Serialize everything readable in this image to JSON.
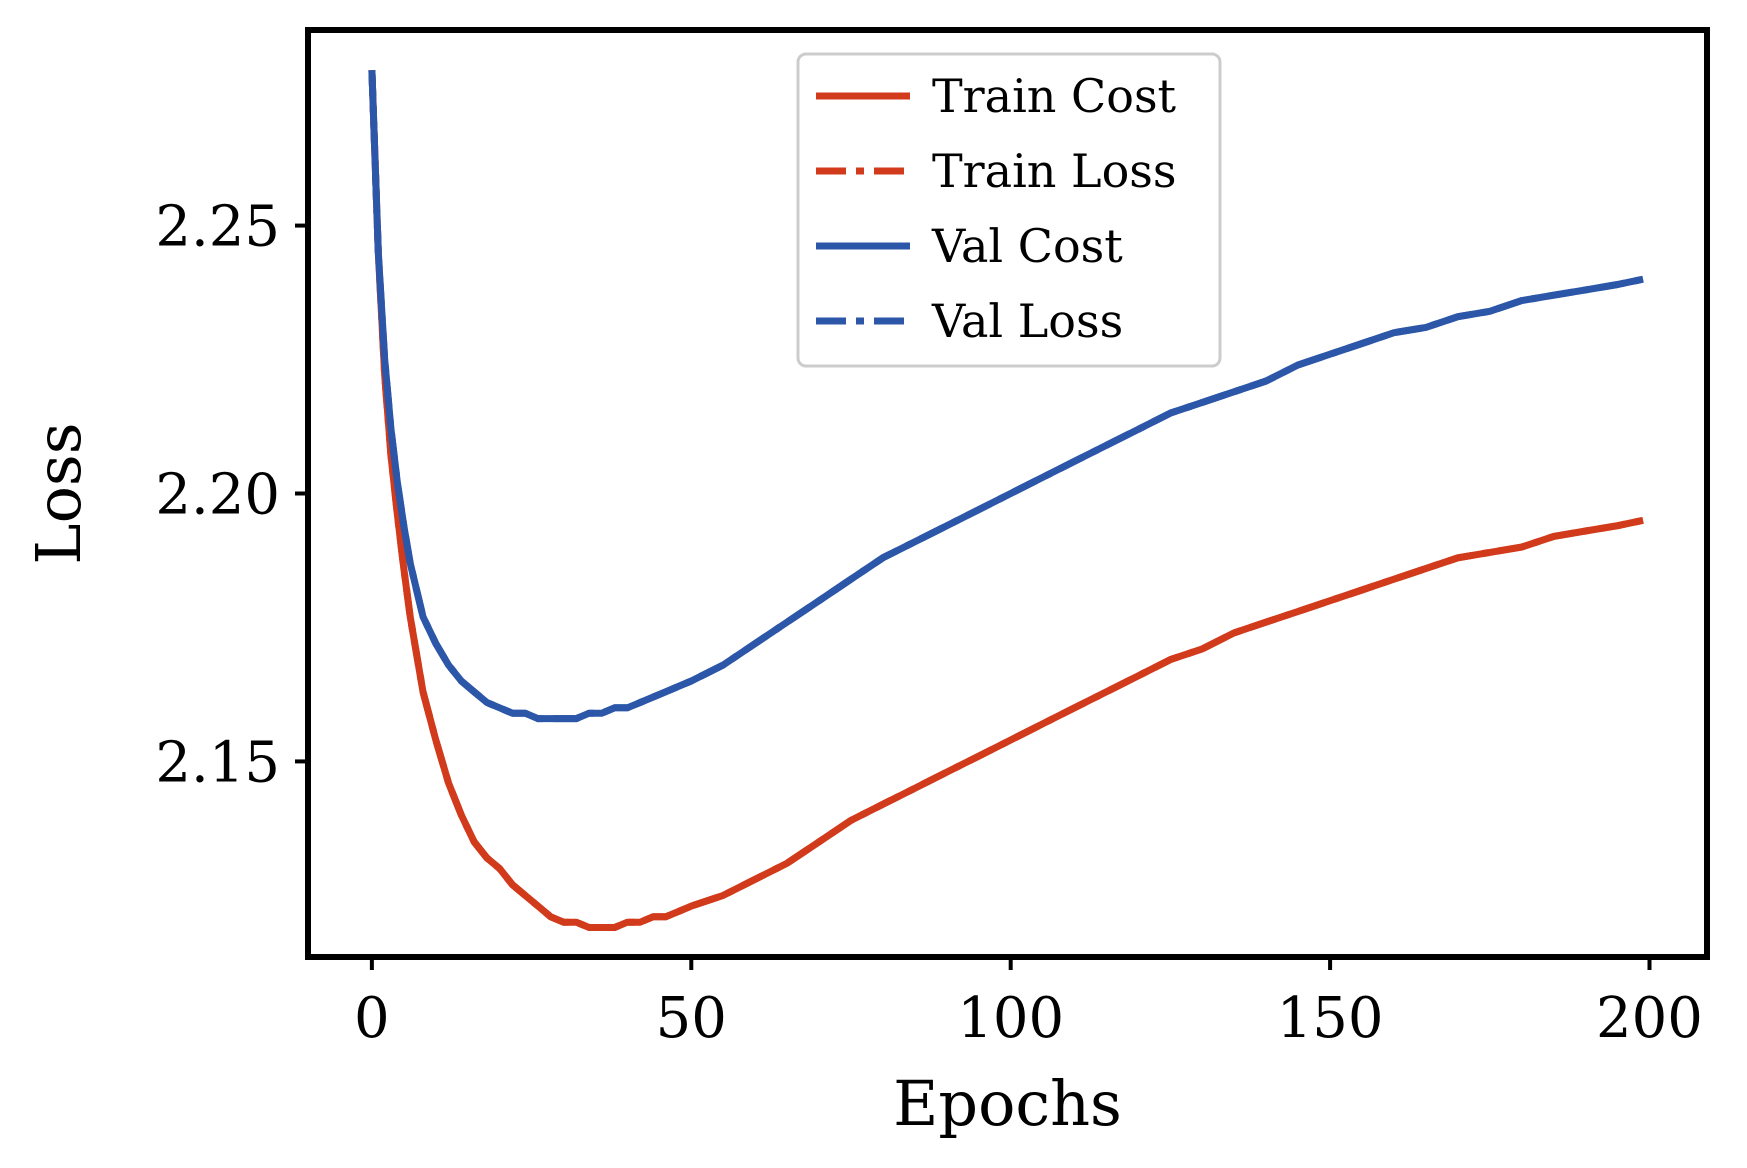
{
  "chart_data": {
    "type": "line",
    "xlabel": "Epochs",
    "ylabel": "Loss",
    "xlim": [
      -10,
      209
    ],
    "ylim": [
      2.1135,
      2.2865
    ],
    "xticks": [
      0,
      50,
      100,
      150,
      200
    ],
    "xtick_labels": [
      "0",
      "50",
      "100",
      "150",
      "200"
    ],
    "yticks": [
      2.15,
      2.2,
      2.25
    ],
    "ytick_labels": [
      "2.15",
      "2.20",
      "2.25"
    ],
    "grid": false,
    "legend_position": "top-center",
    "series": [
      {
        "name": "Train Cost",
        "color": "#d23a1c",
        "dash": "solid",
        "x": [
          0,
          1,
          2,
          3,
          4,
          5,
          6,
          7,
          8,
          10,
          12,
          14,
          16,
          18,
          20,
          22,
          24,
          26,
          28,
          30,
          32,
          34,
          36,
          38,
          40,
          42,
          44,
          46,
          48,
          50,
          55,
          60,
          65,
          70,
          75,
          80,
          85,
          90,
          95,
          100,
          105,
          110,
          115,
          120,
          125,
          130,
          135,
          140,
          145,
          150,
          155,
          160,
          165,
          170,
          175,
          180,
          185,
          190,
          195,
          199
        ],
        "values": [
          2.279,
          2.245,
          2.222,
          2.207,
          2.196,
          2.186,
          2.177,
          2.17,
          2.163,
          2.154,
          2.146,
          2.14,
          2.135,
          2.132,
          2.13,
          2.127,
          2.125,
          2.123,
          2.121,
          2.12,
          2.12,
          2.119,
          2.119,
          2.119,
          2.12,
          2.12,
          2.121,
          2.121,
          2.122,
          2.123,
          2.125,
          2.128,
          2.131,
          2.135,
          2.139,
          2.142,
          2.145,
          2.148,
          2.151,
          2.154,
          2.157,
          2.16,
          2.163,
          2.166,
          2.169,
          2.171,
          2.174,
          2.176,
          2.178,
          2.18,
          2.182,
          2.184,
          2.186,
          2.188,
          2.189,
          2.19,
          2.192,
          2.193,
          2.194,
          2.195
        ]
      },
      {
        "name": "Train Loss",
        "color": "#d23a1c",
        "dash": "dashdot",
        "x": [
          0,
          1,
          2,
          3,
          4,
          5,
          6,
          7,
          8,
          10,
          12,
          14,
          16,
          18,
          20,
          22,
          24,
          26,
          28,
          30,
          32,
          34,
          36,
          38,
          40,
          42,
          44,
          46,
          48,
          50,
          55,
          60,
          65,
          70,
          75,
          80,
          85,
          90,
          95,
          100,
          105,
          110,
          115,
          120,
          125,
          130,
          135,
          140,
          145,
          150,
          155,
          160,
          165,
          170,
          175,
          180,
          185,
          190,
          195,
          199
        ],
        "values": [
          2.279,
          2.245,
          2.222,
          2.207,
          2.196,
          2.186,
          2.177,
          2.17,
          2.163,
          2.154,
          2.146,
          2.14,
          2.135,
          2.132,
          2.13,
          2.127,
          2.125,
          2.123,
          2.121,
          2.12,
          2.12,
          2.119,
          2.119,
          2.119,
          2.12,
          2.12,
          2.121,
          2.121,
          2.122,
          2.123,
          2.125,
          2.128,
          2.131,
          2.135,
          2.139,
          2.142,
          2.145,
          2.148,
          2.151,
          2.154,
          2.157,
          2.16,
          2.163,
          2.166,
          2.169,
          2.171,
          2.174,
          2.176,
          2.178,
          2.18,
          2.182,
          2.184,
          2.186,
          2.188,
          2.189,
          2.19,
          2.192,
          2.193,
          2.194,
          2.195
        ]
      },
      {
        "name": "Val Cost",
        "color": "#2c56a8",
        "dash": "solid",
        "x": [
          0,
          1,
          2,
          3,
          4,
          5,
          6,
          7,
          8,
          10,
          12,
          14,
          16,
          18,
          20,
          22,
          24,
          26,
          28,
          30,
          32,
          34,
          36,
          38,
          40,
          42,
          44,
          46,
          48,
          50,
          55,
          60,
          65,
          70,
          75,
          80,
          85,
          90,
          95,
          100,
          105,
          110,
          115,
          120,
          125,
          130,
          135,
          140,
          145,
          150,
          155,
          160,
          165,
          170,
          175,
          180,
          185,
          190,
          195,
          199
        ],
        "values": [
          2.279,
          2.245,
          2.225,
          2.212,
          2.202,
          2.194,
          2.187,
          2.182,
          2.177,
          2.172,
          2.168,
          2.165,
          2.163,
          2.161,
          2.16,
          2.159,
          2.159,
          2.158,
          2.158,
          2.158,
          2.158,
          2.159,
          2.159,
          2.16,
          2.16,
          2.161,
          2.162,
          2.163,
          2.164,
          2.165,
          2.168,
          2.172,
          2.176,
          2.18,
          2.184,
          2.188,
          2.191,
          2.194,
          2.197,
          2.2,
          2.203,
          2.206,
          2.209,
          2.212,
          2.215,
          2.217,
          2.219,
          2.221,
          2.224,
          2.226,
          2.228,
          2.23,
          2.231,
          2.233,
          2.234,
          2.236,
          2.237,
          2.238,
          2.239,
          2.24
        ]
      },
      {
        "name": "Val Loss",
        "color": "#2c56a8",
        "dash": "dashdot",
        "x": [
          0,
          1,
          2,
          3,
          4,
          5,
          6,
          7,
          8,
          10,
          12,
          14,
          16,
          18,
          20,
          22,
          24,
          26,
          28,
          30,
          32,
          34,
          36,
          38,
          40,
          42,
          44,
          46,
          48,
          50,
          55,
          60,
          65,
          70,
          75,
          80,
          85,
          90,
          95,
          100,
          105,
          110,
          115,
          120,
          125,
          130,
          135,
          140,
          145,
          150,
          155,
          160,
          165,
          170,
          175,
          180,
          185,
          190,
          195,
          199
        ],
        "values": [
          2.279,
          2.245,
          2.225,
          2.212,
          2.202,
          2.194,
          2.187,
          2.182,
          2.177,
          2.172,
          2.168,
          2.165,
          2.163,
          2.161,
          2.16,
          2.159,
          2.159,
          2.158,
          2.158,
          2.158,
          2.158,
          2.159,
          2.159,
          2.16,
          2.16,
          2.161,
          2.162,
          2.163,
          2.164,
          2.165,
          2.168,
          2.172,
          2.176,
          2.18,
          2.184,
          2.188,
          2.191,
          2.194,
          2.197,
          2.2,
          2.203,
          2.206,
          2.209,
          2.212,
          2.215,
          2.217,
          2.219,
          2.221,
          2.224,
          2.226,
          2.228,
          2.23,
          2.231,
          2.233,
          2.234,
          2.236,
          2.237,
          2.238,
          2.239,
          2.24
        ]
      }
    ]
  }
}
